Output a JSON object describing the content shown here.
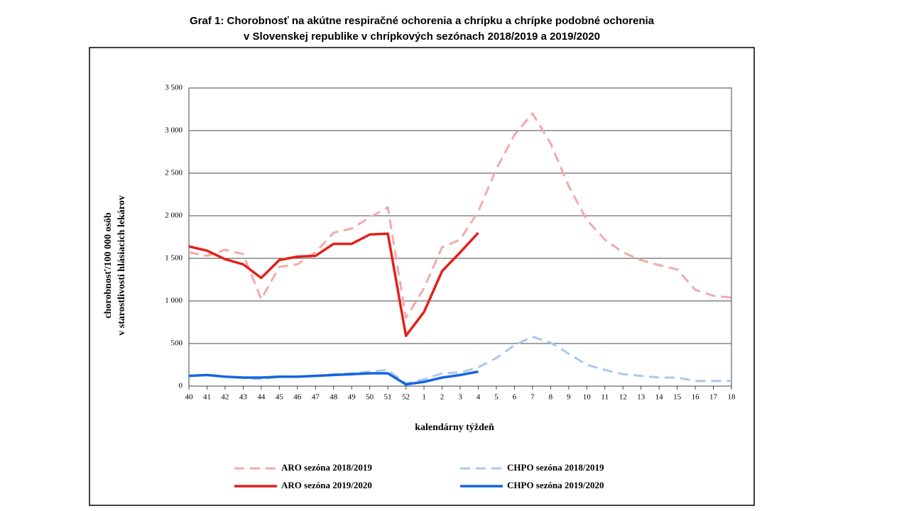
{
  "chart_data": {
    "type": "line",
    "title": [
      "Graf 1: Chorobnosť na akútne respiračné ochorenia a chrípku a chrípke podobné ochorenia",
      "v Slovenskej republike v chrípkových sezónach 2018/2019 a 2019/2020"
    ],
    "xlabel": "kalendárny týždeň",
    "ylabel": [
      "chorobnosť/100 000 osôb",
      "v starostlivosti hlásiacich lekárov"
    ],
    "categories": [
      "40",
      "41",
      "42",
      "43",
      "44",
      "45",
      "46",
      "47",
      "48",
      "49",
      "50",
      "51",
      "52",
      "1",
      "2",
      "3",
      "4",
      "5",
      "6",
      "7",
      "8",
      "9",
      "10",
      "11",
      "12",
      "13",
      "14",
      "15",
      "16",
      "17",
      "18"
    ],
    "ylim": [
      0,
      3500
    ],
    "yticks": [
      0,
      500,
      {
        "value": 1000,
        "label": "1 000"
      },
      {
        "value": 1500,
        "label": "1 500"
      },
      {
        "value": 2000,
        "label": "2 000"
      },
      {
        "value": 2500,
        "label": "2 500"
      },
      {
        "value": 3000,
        "label": "3 000"
      },
      {
        "value": 3500,
        "label": "3 500"
      }
    ],
    "grid": true,
    "legend": "bottom",
    "series": [
      {
        "name": "ARO sezóna 2018/2019",
        "color": "#f4a9a8",
        "style": "dashed",
        "values": [
          1570,
          1530,
          1600,
          1550,
          1020,
          1400,
          1430,
          1570,
          1800,
          1850,
          1980,
          2100,
          800,
          1150,
          1630,
          1720,
          2050,
          2550,
          2950,
          3200,
          2850,
          2350,
          1950,
          1720,
          1570,
          1480,
          1420,
          1370,
          1130,
          1060,
          1040
        ]
      },
      {
        "name": "ARO sezóna 2019/2020",
        "color": "#e3201b",
        "style": "solid",
        "values": [
          1640,
          1590,
          1490,
          1430,
          1270,
          1480,
          1520,
          1530,
          1670,
          1670,
          1780,
          1790,
          590,
          870,
          1350,
          1570,
          1800,
          null,
          null,
          null,
          null,
          null,
          null,
          null,
          null,
          null,
          null,
          null,
          null,
          null,
          null
        ]
      },
      {
        "name": "CHPO sezóna 2018/2019",
        "color": "#a9c8f0",
        "style": "dashed",
        "values": [
          120,
          130,
          110,
          100,
          80,
          110,
          110,
          120,
          140,
          150,
          170,
          190,
          30,
          80,
          150,
          160,
          220,
          330,
          480,
          580,
          510,
          380,
          250,
          190,
          140,
          120,
          100,
          100,
          60,
          60,
          60
        ]
      },
      {
        "name": "CHPO sezóna 2019/2020",
        "color": "#1565e0",
        "style": "solid",
        "values": [
          120,
          130,
          110,
          100,
          100,
          110,
          110,
          120,
          130,
          140,
          150,
          150,
          20,
          50,
          100,
          130,
          170,
          null,
          null,
          null,
          null,
          null,
          null,
          null,
          null,
          null,
          null,
          null,
          null,
          null,
          null
        ]
      }
    ]
  }
}
